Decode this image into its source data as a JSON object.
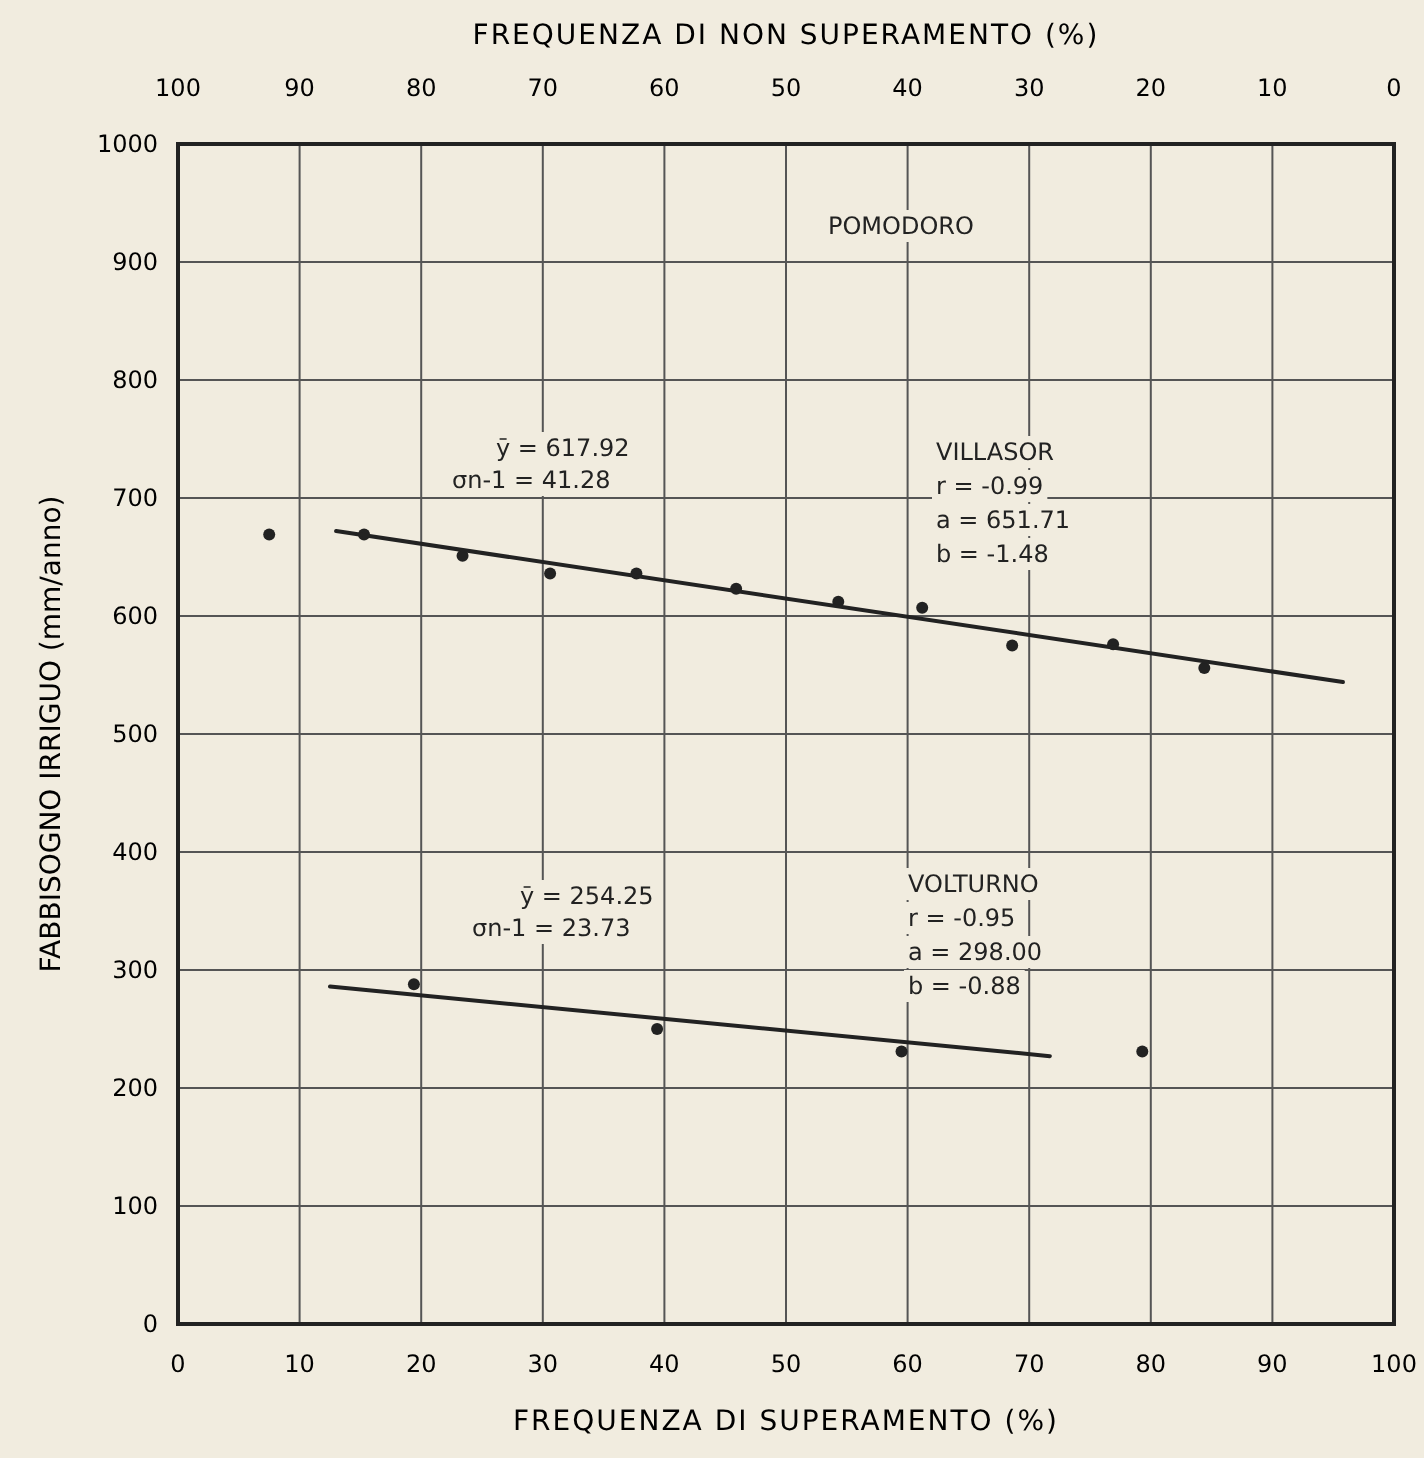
{
  "chart_data": {
    "type": "scatter",
    "xlabel": "FREQUENZA DI SUPERAMENTO (%)",
    "x2label": "FREQUENZA DI NON SUPERAMENTO (%)",
    "ylabel": "FABBISOGNO IRRIGUO (mm/anno)",
    "xlim": [
      0,
      100
    ],
    "xticks": [
      0,
      10,
      20,
      30,
      40,
      50,
      60,
      70,
      80,
      90,
      100
    ],
    "x2lim": [
      100,
      0
    ],
    "x2ticks": [
      100,
      90,
      80,
      70,
      60,
      50,
      40,
      30,
      20,
      10,
      0
    ],
    "ylim": [
      0,
      1000
    ],
    "yticks": [
      0,
      100,
      200,
      300,
      400,
      500,
      600,
      700,
      800,
      900,
      1000
    ],
    "grid": true,
    "marker": "circle",
    "series": [
      {
        "type": "scatter",
        "color": "#222222",
        "x": [
          7.5,
          15.3,
          23.4,
          30.6,
          37.7,
          45.9,
          54.3,
          61.2,
          68.6,
          76.9,
          84.4
        ],
        "values": [
          669,
          669,
          651,
          636,
          636,
          623,
          612,
          607,
          575,
          576,
          556
        ]
      },
      {
        "type": "line",
        "color": "#222222",
        "marker": "none",
        "line_style": "solid",
        "x": [
          13,
          95.8
        ],
        "values": [
          672,
          544
        ]
      },
      {
        "type": "scatter",
        "color": "#222222",
        "x": [
          19.4,
          39.4,
          59.5,
          79.3
        ],
        "values": [
          288,
          250,
          231,
          231
        ]
      },
      {
        "type": "line",
        "color": "#222222",
        "marker": "none",
        "line_style": "solid",
        "x": [
          12.5,
          71.7
        ],
        "values": [
          286,
          227
        ]
      }
    ],
    "annotations": [
      "POMODORO",
      "ȳ = 617.92",
      "σn-1 = 41.28",
      "VILLASOR",
      "r = -0.99",
      "a = 651.71",
      "b = -1.48",
      "ȳ = 254.25",
      "σn-1 = 23.73",
      "VOLTURNO",
      "r = -0.95",
      "a = 298.00",
      "b = -0.88"
    ]
  }
}
